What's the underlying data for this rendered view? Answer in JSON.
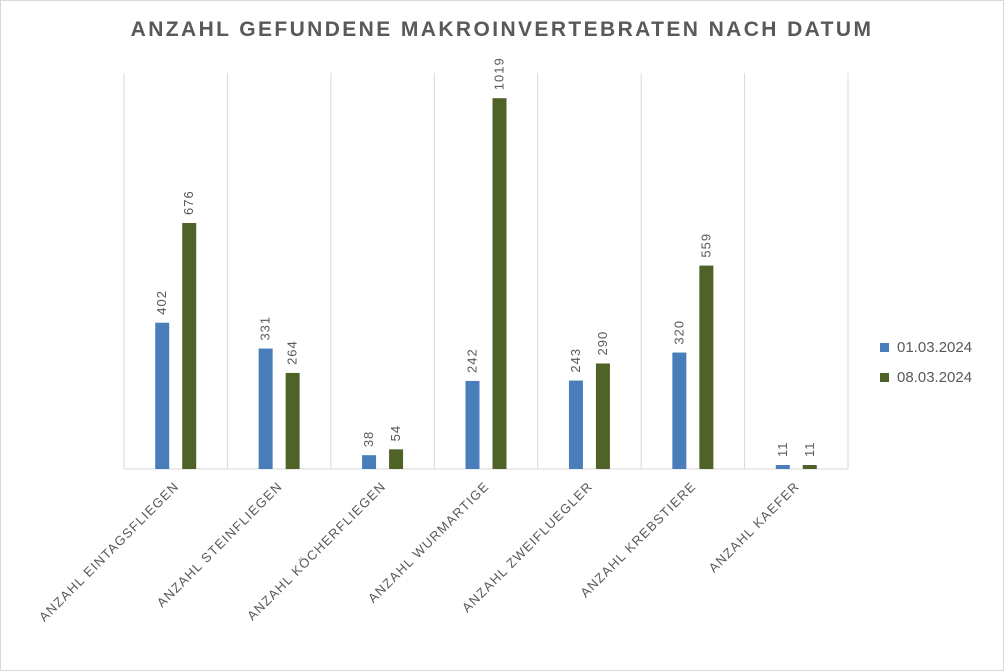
{
  "chart_data": {
    "type": "bar",
    "title": "ANZAHL GEFUNDENE MAKROINVERTEBRATEN NACH DATUM",
    "categories": [
      "ANZAHL EINTAGSFLIEGEN",
      "ANZAHL STEINFLIEGEN",
      "ANZAHL KÖCHERFLIEGEN",
      "ANZAHL WURMARTIGE",
      "ANZAHL ZWEIFLUEGLER",
      "ANZAHL KREBSTIERE",
      "ANZAHL KAEFER"
    ],
    "series": [
      {
        "name": "01.03.2024",
        "color": "#4a7ebb",
        "values": [
          402,
          331,
          38,
          242,
          243,
          320,
          11
        ]
      },
      {
        "name": "08.03.2024",
        "color": "#4f6228",
        "values": [
          676,
          264,
          54,
          1019,
          290,
          559,
          11
        ]
      }
    ],
    "ylim": [
      0,
      1080
    ],
    "grid": "vertical",
    "legend": "right",
    "data_labels": true
  }
}
